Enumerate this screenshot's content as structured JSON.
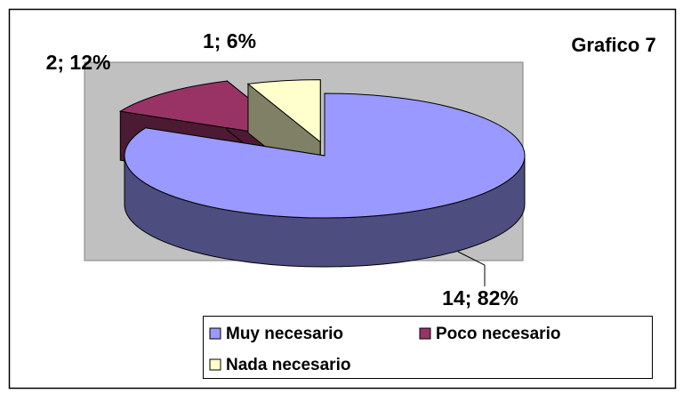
{
  "chart_data": {
    "type": "pie3d",
    "title": "Grafico 7",
    "categories": [
      "Muy necesario",
      "Poco necesario",
      "Nada necesario"
    ],
    "values": [
      14,
      2,
      1
    ],
    "value_labels": [
      "14; 82%",
      "2; 12%",
      "1; 6%"
    ],
    "colors": [
      "#9999ff",
      "#993366",
      "#ffffcc"
    ]
  }
}
